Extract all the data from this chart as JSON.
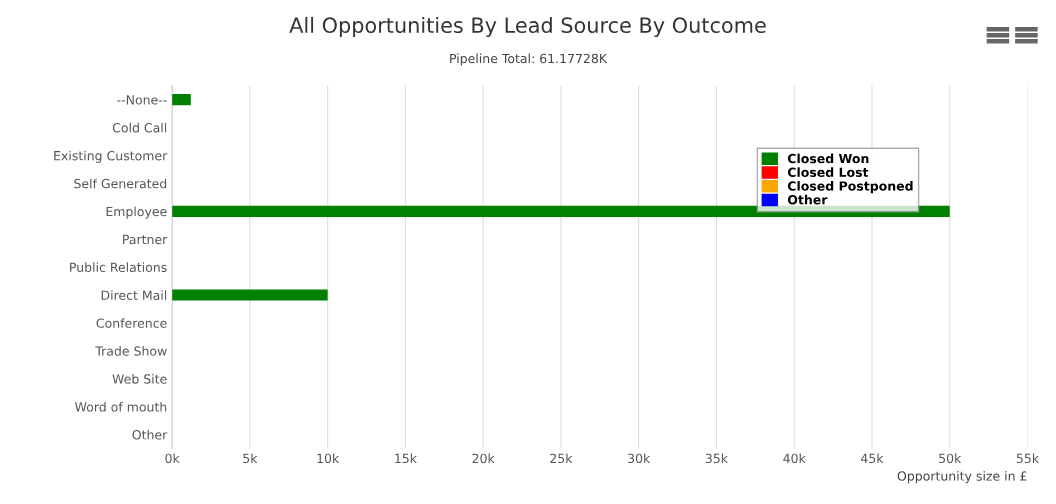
{
  "chart_data": {
    "type": "bar",
    "orientation": "horizontal",
    "title": "All Opportunities By Lead Source By Outcome",
    "subtitle": "Pipeline Total: 61.17728K",
    "xlabel": "Opportunity size in £",
    "categories": [
      "--None--",
      "Cold Call",
      "Existing Customer",
      "Self Generated",
      "Employee",
      "Partner",
      "Public Relations",
      "Direct Mail",
      "Conference",
      "Trade Show",
      "Web Site",
      "Word of mouth",
      "Other"
    ],
    "series": [
      {
        "name": "Closed Won",
        "color": "#008000",
        "values": [
          1200,
          null,
          null,
          null,
          50000,
          null,
          null,
          10000,
          null,
          null,
          null,
          null,
          null
        ]
      },
      {
        "name": "Closed Lost",
        "color": "#ff0000",
        "values": [
          null,
          null,
          null,
          null,
          null,
          null,
          null,
          null,
          null,
          null,
          null,
          null,
          null
        ]
      },
      {
        "name": "Closed Postponed",
        "color": "#ffa500",
        "values": [
          null,
          null,
          null,
          null,
          null,
          null,
          null,
          null,
          null,
          null,
          null,
          null,
          null
        ]
      },
      {
        "name": "Other",
        "color": "#0000ff",
        "values": [
          null,
          null,
          null,
          null,
          null,
          null,
          null,
          null,
          null,
          null,
          null,
          null,
          null
        ]
      }
    ],
    "xlim": [
      0,
      55000
    ],
    "xticks": [
      {
        "value": 0,
        "label": "0k"
      },
      {
        "value": 5000,
        "label": "5k"
      },
      {
        "value": 10000,
        "label": "10k"
      },
      {
        "value": 15000,
        "label": "15k"
      },
      {
        "value": 20000,
        "label": "20k"
      },
      {
        "value": 25000,
        "label": "25k"
      },
      {
        "value": 30000,
        "label": "30k"
      },
      {
        "value": 35000,
        "label": "35k"
      },
      {
        "value": 40000,
        "label": "40k"
      },
      {
        "value": 45000,
        "label": "45k"
      },
      {
        "value": 50000,
        "label": "50k"
      },
      {
        "value": 55000,
        "label": "55k"
      }
    ],
    "grid": "x",
    "legend": "right"
  }
}
